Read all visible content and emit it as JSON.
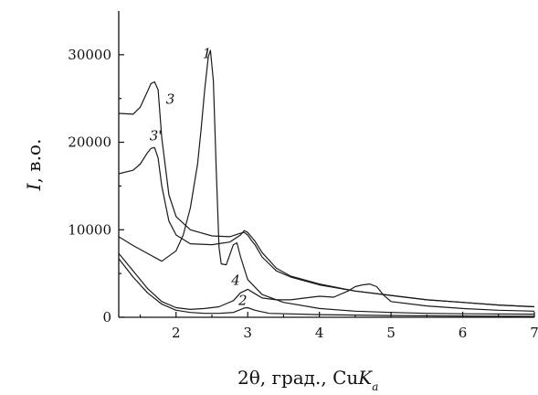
{
  "chart_data": {
    "type": "line",
    "title": "",
    "xlabel": "2θ, град., Cu",
    "xlabel_italic": "K",
    "xlabel_sub": "a",
    "ylabel_italic": "I",
    "ylabel_rest": ", в.о.",
    "xlim": [
      1.2,
      7
    ],
    "ylim": [
      0,
      35000
    ],
    "xticks": [
      2,
      3,
      4,
      5,
      6,
      7
    ],
    "yticks": [
      0,
      10000,
      20000,
      30000
    ],
    "xtick_labels": [
      "2",
      "3",
      "4",
      "5",
      "6",
      "7"
    ],
    "ytick_labels": [
      "0",
      "10000",
      "20000",
      "30000"
    ],
    "grid": false,
    "series": [
      {
        "name": "1",
        "x": [
          1.2,
          1.4,
          1.6,
          1.8,
          2.0,
          2.1,
          2.2,
          2.3,
          2.35,
          2.4,
          2.45,
          2.48,
          2.52,
          2.56,
          2.6,
          2.63,
          2.7,
          2.8,
          2.85,
          2.9,
          3.0,
          3.2,
          3.5,
          4.0,
          4.5,
          5.0,
          5.5,
          6.0,
          7.0
        ],
        "y": [
          9200,
          8200,
          7300,
          6400,
          7600,
          9400,
          12500,
          17500,
          21500,
          26000,
          29800,
          30500,
          27000,
          17000,
          8000,
          6100,
          6000,
          8300,
          8500,
          6900,
          4300,
          2600,
          1700,
          1000,
          700,
          550,
          450,
          400,
          350
        ]
      },
      {
        "name": "2",
        "x": [
          1.2,
          1.4,
          1.6,
          1.8,
          2.0,
          2.2,
          2.4,
          2.6,
          2.8,
          2.95,
          3.0,
          3.1,
          3.3,
          4.0,
          5.0,
          6.0,
          7.0
        ],
        "y": [
          6700,
          4600,
          2800,
          1500,
          800,
          550,
          450,
          450,
          550,
          1050,
          1100,
          800,
          450,
          300,
          200,
          150,
          100
        ]
      },
      {
        "name": "3",
        "x": [
          1.2,
          1.4,
          1.5,
          1.6,
          1.65,
          1.7,
          1.75,
          1.8,
          1.9,
          2.0,
          2.2,
          2.5,
          2.75,
          2.9,
          2.95,
          3.0,
          3.05,
          3.1,
          3.2,
          3.4,
          3.6,
          4.0,
          4.5,
          5.0,
          5.5,
          6.0,
          6.5,
          7.0
        ],
        "y": [
          23300,
          23200,
          24000,
          25800,
          26700,
          26900,
          26000,
          20500,
          14000,
          11500,
          10000,
          9300,
          9200,
          9600,
          9700,
          9400,
          8800,
          8300,
          6900,
          5300,
          4600,
          3700,
          3000,
          2500,
          2000,
          1700,
          1400,
          1200
        ]
      },
      {
        "name": "3'",
        "x": [
          1.2,
          1.4,
          1.5,
          1.6,
          1.65,
          1.7,
          1.75,
          1.8,
          1.9,
          2.0,
          2.2,
          2.5,
          2.75,
          2.9,
          2.95,
          3.0,
          3.1,
          3.2,
          3.4,
          3.6,
          4.0,
          4.5,
          5.0,
          5.5,
          6.0,
          6.5,
          7.0
        ],
        "y": [
          16400,
          16800,
          17500,
          18800,
          19300,
          19400,
          18200,
          15000,
          11000,
          9400,
          8400,
          8300,
          8600,
          9400,
          9900,
          9700,
          8700,
          7400,
          5600,
          4700,
          3800,
          3000,
          2500,
          2000,
          1700,
          1400,
          1200
        ]
      },
      {
        "name": "4",
        "x": [
          1.2,
          1.4,
          1.6,
          1.8,
          2.0,
          2.2,
          2.4,
          2.6,
          2.8,
          2.9,
          3.0,
          3.1,
          3.2,
          3.4,
          3.6,
          3.8,
          4.0,
          4.2,
          4.4,
          4.5,
          4.6,
          4.7,
          4.8,
          4.9,
          5.0,
          5.5,
          6.0,
          6.5,
          7.0
        ],
        "y": [
          7300,
          5300,
          3300,
          1800,
          1100,
          900,
          1000,
          1200,
          1900,
          2800,
          3200,
          2700,
          2200,
          2000,
          2000,
          2200,
          2400,
          2300,
          3000,
          3500,
          3700,
          3800,
          3500,
          2500,
          1800,
          1300,
          1000,
          800,
          700
        ]
      }
    ]
  }
}
